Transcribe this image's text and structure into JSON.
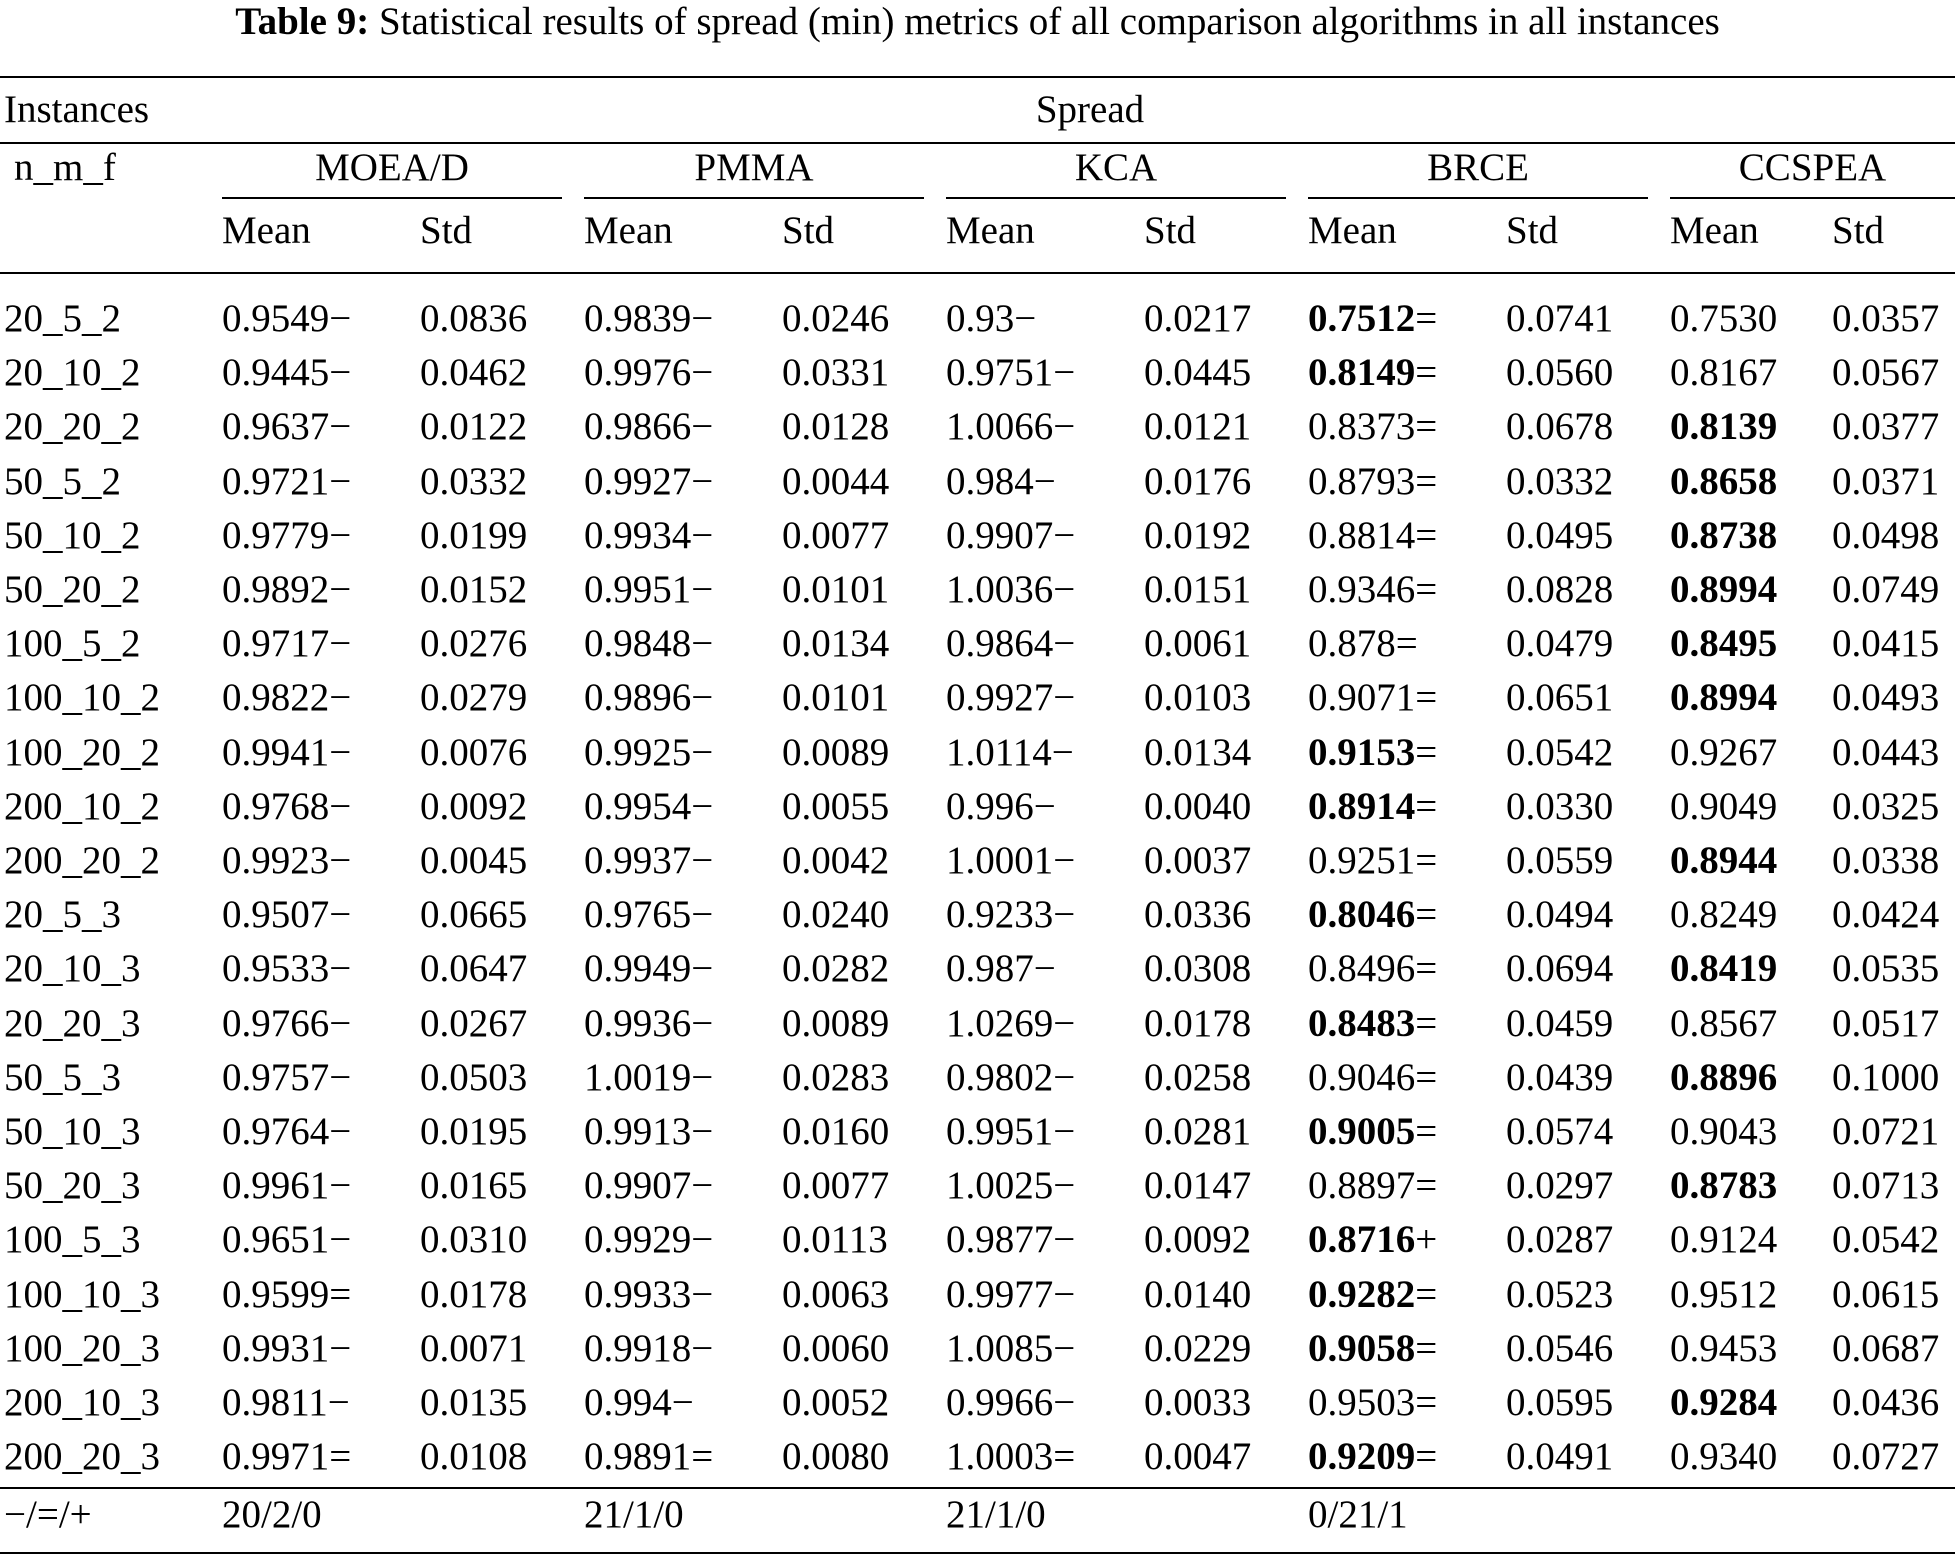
{
  "caption": {
    "label": "Table 9:",
    "text": "Statistical results of spread (min) metrics of all comparison algorithms in all instances"
  },
  "header": {
    "instances": "Instances",
    "spread": "Spread",
    "nmf": "n_m_f",
    "algorithms": [
      "MOEA/D",
      "PMMA",
      "KCA",
      "BRCE",
      "CCSPEA"
    ],
    "mean": "Mean",
    "std": "Std"
  },
  "rows": [
    {
      "inst": "20_5_2",
      "cells": [
        "0.9549−",
        "0.0836",
        "0.9839−",
        "0.0246",
        "0.93−",
        "0.0217",
        "0.7512=",
        "0.0741",
        "0.7530",
        "0.0357"
      ],
      "bold": [
        6
      ]
    },
    {
      "inst": "20_10_2",
      "cells": [
        "0.9445−",
        "0.0462",
        "0.9976−",
        "0.0331",
        "0.9751−",
        "0.0445",
        "0.8149=",
        "0.0560",
        "0.8167",
        "0.0567"
      ],
      "bold": [
        6
      ]
    },
    {
      "inst": "20_20_2",
      "cells": [
        "0.9637−",
        "0.0122",
        "0.9866−",
        "0.0128",
        "1.0066−",
        "0.0121",
        "0.8373=",
        "0.0678",
        "0.8139",
        "0.0377"
      ],
      "bold": [
        8
      ]
    },
    {
      "inst": "50_5_2",
      "cells": [
        "0.9721−",
        "0.0332",
        "0.9927−",
        "0.0044",
        "0.984−",
        "0.0176",
        "0.8793=",
        "0.0332",
        "0.8658",
        "0.0371"
      ],
      "bold": [
        8
      ]
    },
    {
      "inst": "50_10_2",
      "cells": [
        "0.9779−",
        "0.0199",
        "0.9934−",
        "0.0077",
        "0.9907−",
        "0.0192",
        "0.8814=",
        "0.0495",
        "0.8738",
        "0.0498"
      ],
      "bold": [
        8
      ]
    },
    {
      "inst": "50_20_2",
      "cells": [
        "0.9892−",
        "0.0152",
        "0.9951−",
        "0.0101",
        "1.0036−",
        "0.0151",
        "0.9346=",
        "0.0828",
        "0.8994",
        "0.0749"
      ],
      "bold": [
        8
      ]
    },
    {
      "inst": "100_5_2",
      "cells": [
        "0.9717−",
        "0.0276",
        "0.9848−",
        "0.0134",
        "0.9864−",
        "0.0061",
        "0.878=",
        "0.0479",
        "0.8495",
        "0.0415"
      ],
      "bold": [
        8
      ]
    },
    {
      "inst": "100_10_2",
      "cells": [
        "0.9822−",
        "0.0279",
        "0.9896−",
        "0.0101",
        "0.9927−",
        "0.0103",
        "0.9071=",
        "0.0651",
        "0.8994",
        "0.0493"
      ],
      "bold": [
        8
      ]
    },
    {
      "inst": "100_20_2",
      "cells": [
        "0.9941−",
        "0.0076",
        "0.9925−",
        "0.0089",
        "1.0114−",
        "0.0134",
        "0.9153=",
        "0.0542",
        "0.9267",
        "0.0443"
      ],
      "bold": [
        6
      ]
    },
    {
      "inst": "200_10_2",
      "cells": [
        "0.9768−",
        "0.0092",
        "0.9954−",
        "0.0055",
        "0.996−",
        "0.0040",
        "0.8914=",
        "0.0330",
        "0.9049",
        "0.0325"
      ],
      "bold": [
        6
      ]
    },
    {
      "inst": "200_20_2",
      "cells": [
        "0.9923−",
        "0.0045",
        "0.9937−",
        "0.0042",
        "1.0001−",
        "0.0037",
        "0.9251=",
        "0.0559",
        "0.8944",
        "0.0338"
      ],
      "bold": [
        8
      ]
    },
    {
      "inst": "20_5_3",
      "cells": [
        "0.9507−",
        "0.0665",
        "0.9765−",
        "0.0240",
        "0.9233−",
        "0.0336",
        "0.8046=",
        "0.0494",
        "0.8249",
        "0.0424"
      ],
      "bold": [
        6
      ]
    },
    {
      "inst": "20_10_3",
      "cells": [
        "0.9533−",
        "0.0647",
        "0.9949−",
        "0.0282",
        "0.987−",
        "0.0308",
        "0.8496=",
        "0.0694",
        "0.8419",
        "0.0535"
      ],
      "bold": [
        8
      ]
    },
    {
      "inst": "20_20_3",
      "cells": [
        "0.9766−",
        "0.0267",
        "0.9936−",
        "0.0089",
        "1.0269−",
        "0.0178",
        "0.8483=",
        "0.0459",
        "0.8567",
        "0.0517"
      ],
      "bold": [
        6
      ]
    },
    {
      "inst": "50_5_3",
      "cells": [
        "0.9757−",
        "0.0503",
        "1.0019−",
        "0.0283",
        "0.9802−",
        "0.0258",
        "0.9046=",
        "0.0439",
        "0.8896",
        "0.1000"
      ],
      "bold": [
        8
      ]
    },
    {
      "inst": "50_10_3",
      "cells": [
        "0.9764−",
        "0.0195",
        "0.9913−",
        "0.0160",
        "0.9951−",
        "0.0281",
        "0.9005=",
        "0.0574",
        "0.9043",
        "0.0721"
      ],
      "bold": [
        6
      ]
    },
    {
      "inst": "50_20_3",
      "cells": [
        "0.9961−",
        "0.0165",
        "0.9907−",
        "0.0077",
        "1.0025−",
        "0.0147",
        "0.8897=",
        "0.0297",
        "0.8783",
        "0.0713"
      ],
      "bold": [
        8
      ]
    },
    {
      "inst": "100_5_3",
      "cells": [
        "0.9651−",
        "0.0310",
        "0.9929−",
        "0.0113",
        "0.9877−",
        "0.0092",
        "0.8716+",
        "0.0287",
        "0.9124",
        "0.0542"
      ],
      "bold": [
        6
      ]
    },
    {
      "inst": "100_10_3",
      "cells": [
        "0.9599=",
        "0.0178",
        "0.9933−",
        "0.0063",
        "0.9977−",
        "0.0140",
        "0.9282=",
        "0.0523",
        "0.9512",
        "0.0615"
      ],
      "bold": [
        6
      ]
    },
    {
      "inst": "100_20_3",
      "cells": [
        "0.9931−",
        "0.0071",
        "0.9918−",
        "0.0060",
        "1.0085−",
        "0.0229",
        "0.9058=",
        "0.0546",
        "0.9453",
        "0.0687"
      ],
      "bold": [
        6
      ]
    },
    {
      "inst": "200_10_3",
      "cells": [
        "0.9811−",
        "0.0135",
        "0.994−",
        "0.0052",
        "0.9966−",
        "0.0033",
        "0.9503=",
        "0.0595",
        "0.9284",
        "0.0436"
      ],
      "bold": [
        8
      ]
    },
    {
      "inst": "200_20_3",
      "cells": [
        "0.9971=",
        "0.0108",
        "0.9891=",
        "0.0080",
        "1.0003=",
        "0.0047",
        "0.9209=",
        "0.0491",
        "0.9340",
        "0.0727"
      ],
      "bold": [
        6
      ]
    }
  ],
  "summary": {
    "label": "−/=/+",
    "values": [
      "20/2/0",
      "21/1/0",
      "21/1/0",
      "0/21/1"
    ]
  }
}
